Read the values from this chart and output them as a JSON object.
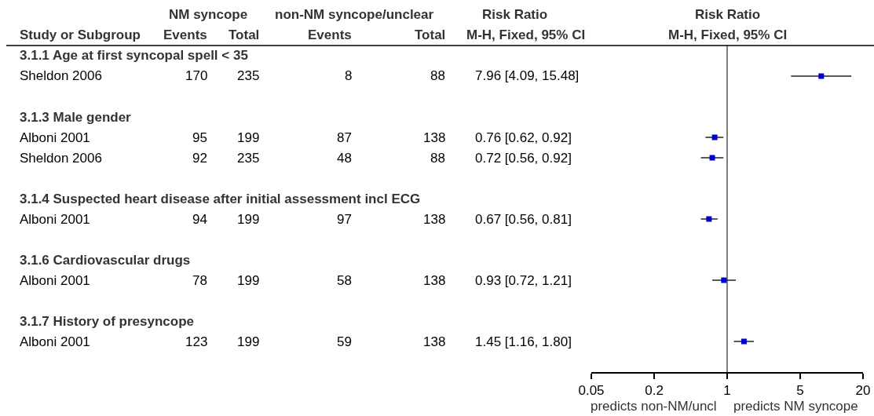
{
  "chart_data": [
    {
      "type": "other",
      "ylabel": "Study or Subgroup",
      "categories": [
        "Events",
        "Total",
        "Events",
        "Total",
        "M-H, Fixed, 95% CI"
      ],
      "annotations": [
        "NM syncope",
        "non-NM syncope/unclear",
        "Risk Ratio"
      ],
      "y_categories": [
        "3.1.1 Age at first syncopal spell < 35",
        "Sheldon 2006",
        null,
        "3.1.3 Male gender",
        "Alboni 2001",
        "Sheldon 2006",
        null,
        "3.1.4 Suspected heart disease after initial assessment incl ECG",
        "Alboni 2001",
        null,
        "3.1.6 Cardiovascular drugs",
        "Alboni 2001",
        null,
        "3.1.7 History of presyncope",
        "Alboni 2001"
      ],
      "cell_labels": [
        [
          null,
          null,
          null,
          null,
          null
        ],
        [
          "170",
          "235",
          "8",
          "88",
          "7.96 [4.09, 15.48]"
        ],
        [
          null,
          null,
          null,
          null,
          null
        ],
        [
          null,
          null,
          null,
          null,
          null
        ],
        [
          "95",
          "199",
          "87",
          "138",
          "0.76 [0.62, 0.92]"
        ],
        [
          "92",
          "235",
          "48",
          "88",
          "0.72 [0.56, 0.92]"
        ],
        [
          null,
          null,
          null,
          null,
          null
        ],
        [
          null,
          null,
          null,
          null,
          null
        ],
        [
          "94",
          "199",
          "97",
          "138",
          "0.67 [0.56, 0.81]"
        ],
        [
          null,
          null,
          null,
          null,
          null
        ],
        [
          null,
          null,
          null,
          null,
          null
        ],
        [
          "78",
          "199",
          "58",
          "138",
          "0.93 [0.72, 1.21]"
        ],
        [
          null,
          null,
          null,
          null,
          null
        ],
        [
          null,
          null,
          null,
          null,
          null
        ],
        [
          "123",
          "199",
          "59",
          "138",
          "1.45 [1.16, 1.80]"
        ]
      ]
    },
    {
      "type": "scatter",
      "title": "Risk Ratio",
      "subtitle": "M-H, Fixed, 95% CI",
      "orientation": "horizontal",
      "categories": [
        null,
        null,
        null,
        null,
        null,
        null,
        null,
        null,
        null,
        null,
        null,
        null,
        null,
        null,
        null,
        null
      ],
      "series": [
        {
          "color": "#0000cc",
          "values": [
            null,
            7.96,
            null,
            null,
            0.76,
            0.72,
            null,
            null,
            0.67,
            null,
            null,
            0.93,
            null,
            null,
            1.45,
            null
          ],
          "errors": [
            null,
            [
              4.09,
              15.48
            ],
            null,
            null,
            [
              0.62,
              0.92
            ],
            [
              0.56,
              0.92
            ],
            null,
            null,
            [
              0.56,
              0.81
            ],
            null,
            null,
            [
              0.72,
              1.21
            ],
            null,
            null,
            [
              1.16,
              1.8
            ],
            null
          ]
        }
      ],
      "log": "x",
      "xlim": [
        0.05,
        20
      ],
      "xticks": [
        0.05,
        0.2,
        1,
        5,
        20
      ],
      "marker": "square",
      "ref_lines": [
        {
          "axis": "x",
          "value": 1,
          "color": "#555555"
        }
      ],
      "annotations": [
        "predicts non-NM/uncl",
        "predicts NM syncope"
      ]
    }
  ]
}
